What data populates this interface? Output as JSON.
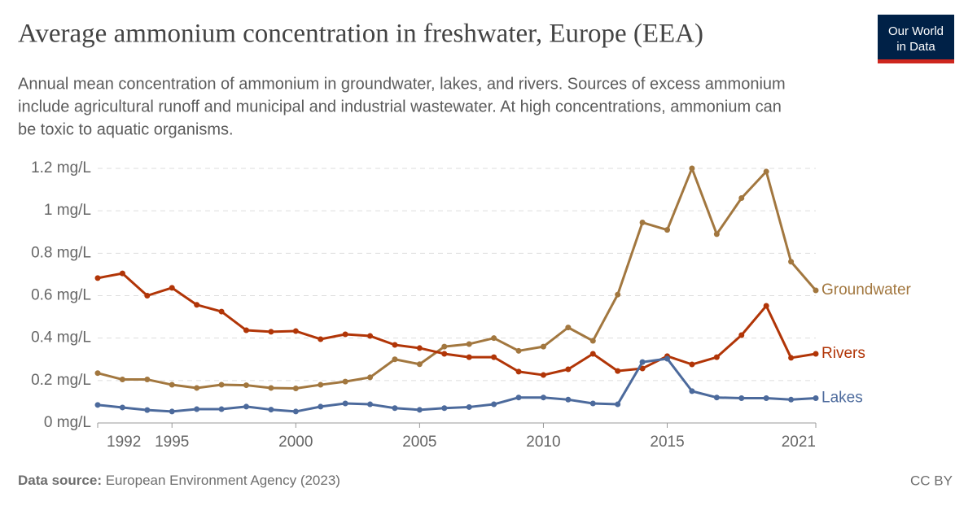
{
  "logo": [
    "Our World",
    "in Data"
  ],
  "footer": {
    "source_label": "Data source:",
    "source": "European Environment Agency (2023)",
    "license": "CC BY"
  },
  "chart_data": {
    "type": "line",
    "title": "Average ammonium concentration in freshwater, Europe (EEA)",
    "subtitle": [
      "Annual mean concentration of ammonium in groundwater, lakes, and rivers. Sources of excess ammonium",
      "include agricultural runoff and municipal and industrial wastewater. At high concentrations, ammonium can",
      "be toxic to aquatic organisms."
    ],
    "x": [
      1992,
      1993,
      1994,
      1995,
      1996,
      1997,
      1998,
      1999,
      2000,
      2001,
      2002,
      2003,
      2004,
      2005,
      2006,
      2007,
      2008,
      2009,
      2010,
      2011,
      2012,
      2013,
      2014,
      2015,
      2016,
      2017,
      2018,
      2019,
      2020,
      2021
    ],
    "xlim": [
      1992,
      2021
    ],
    "xticks": [
      1992,
      1995,
      2000,
      2005,
      2010,
      2015,
      2021
    ],
    "ylim": [
      0,
      1.2
    ],
    "yticks": [
      {
        "value": 0,
        "label": "0 mg/L"
      },
      {
        "value": 0.2,
        "label": "0.2 mg/L"
      },
      {
        "value": 0.4,
        "label": "0.4 mg/L"
      },
      {
        "value": 0.6,
        "label": "0.6 mg/L"
      },
      {
        "value": 0.8,
        "label": "0.8 mg/L"
      },
      {
        "value": 1,
        "label": "1 mg/L"
      },
      {
        "value": 1.2,
        "label": "1.2 mg/L"
      }
    ],
    "grid": true,
    "series": [
      {
        "name": "Groundwater",
        "color": "#a2773f",
        "values": [
          0.235,
          0.205,
          0.205,
          0.18,
          0.165,
          0.18,
          0.178,
          0.165,
          0.163,
          0.18,
          0.195,
          0.215,
          0.3,
          0.277,
          0.36,
          0.372,
          0.4,
          0.34,
          0.36,
          0.45,
          0.387,
          0.605,
          0.945,
          0.91,
          1.2,
          0.89,
          1.06,
          1.185,
          0.76,
          0.625
        ]
      },
      {
        "name": "Rivers",
        "color": "#b13507",
        "values": [
          0.683,
          0.705,
          0.6,
          0.637,
          0.557,
          0.525,
          0.437,
          0.43,
          0.433,
          0.395,
          0.418,
          0.41,
          0.368,
          0.353,
          0.326,
          0.31,
          0.31,
          0.242,
          0.226,
          0.253,
          0.326,
          0.245,
          0.257,
          0.315,
          0.276,
          0.31,
          0.414,
          0.552,
          0.307,
          0.326
        ]
      },
      {
        "name": "Lakes",
        "color": "#4c6a9c",
        "values": [
          0.085,
          0.073,
          0.061,
          0.054,
          0.065,
          0.065,
          0.077,
          0.063,
          0.054,
          0.077,
          0.092,
          0.088,
          0.07,
          0.062,
          0.07,
          0.075,
          0.088,
          0.12,
          0.12,
          0.11,
          0.092,
          0.088,
          0.287,
          0.303,
          0.15,
          0.12,
          0.117,
          0.117,
          0.11,
          0.117
        ]
      }
    ]
  }
}
